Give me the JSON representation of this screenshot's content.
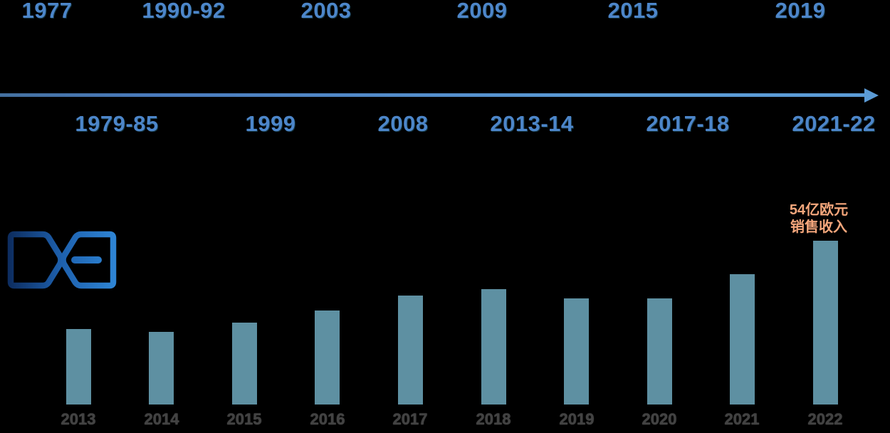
{
  "background_color": "#000000",
  "timeline": {
    "top_labels": [
      "1977",
      "1990-92",
      "2003",
      "2009",
      "2015",
      "2019"
    ],
    "bottom_labels": [
      "1979-85",
      "1999",
      "2008",
      "2013-14",
      "2017-18",
      "2021-22"
    ],
    "label_color": "#4D86CA",
    "arrow_color": "#5B9BD5"
  },
  "logo": {
    "description": "blue gradient hourglass X emblem with horizontal dash",
    "gradient_start": "#0C2A5B",
    "gradient_mid": "#1E61AE",
    "gradient_end": "#2F87D7"
  },
  "chart_data": {
    "type": "bar",
    "title": "",
    "xlabel": "",
    "ylabel": "",
    "categories": [
      "2013",
      "2014",
      "2015",
      "2016",
      "2017",
      "2018",
      "2019",
      "2020",
      "2021",
      "2022"
    ],
    "values": [
      25,
      24,
      27,
      31,
      36,
      38,
      35,
      35,
      43,
      54
    ],
    "unit": "亿欧元",
    "ylim": [
      0,
      56
    ],
    "grid": false,
    "legend": false,
    "bar_color": "#5E90A2",
    "category_label_color": "#424242",
    "annotation": {
      "lines": [
        "54亿欧元",
        "销售收入"
      ],
      "color": "#F5A77C",
      "target_category": "2022"
    }
  }
}
